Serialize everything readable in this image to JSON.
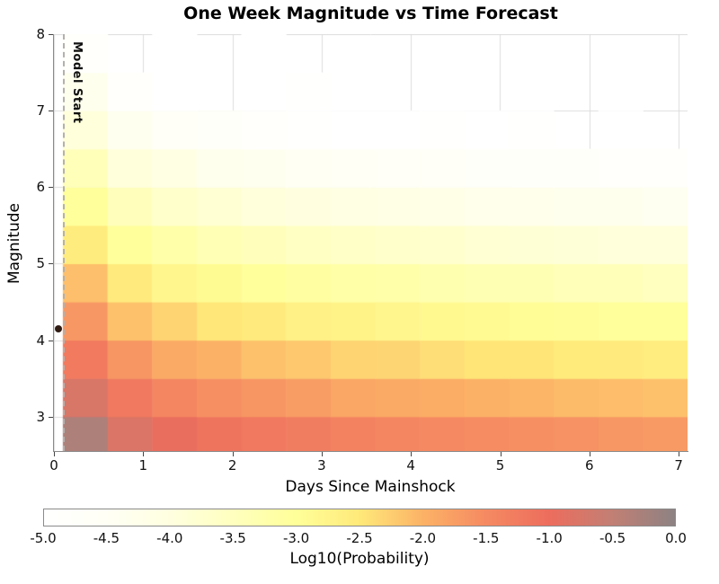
{
  "chart_data": {
    "type": "heatmap",
    "title": "One Week Magnitude vs Time Forecast",
    "xlabel": "Days Since Mainshock",
    "ylabel": "Magnitude",
    "xlim": [
      0,
      7.1
    ],
    "ylim": [
      2.55,
      8
    ],
    "x_ticks": [
      0,
      1,
      2,
      3,
      4,
      5,
      6,
      7
    ],
    "x_tick_labels": [
      "0",
      "1",
      "2",
      "3",
      "4",
      "5",
      "6",
      "7"
    ],
    "y_ticks": [
      3,
      4,
      5,
      6,
      7,
      8
    ],
    "y_tick_labels": [
      "3",
      "4",
      "5",
      "6",
      "7",
      "8"
    ],
    "grid": true,
    "x_edges": [
      0.1,
      0.6,
      1.1,
      1.6,
      2.1,
      2.6,
      3.1,
      3.6,
      4.1,
      4.6,
      5.1,
      5.6,
      6.1,
      6.6,
      7.1
    ],
    "y_edges": [
      2.55,
      3.0,
      3.5,
      4.0,
      4.5,
      5.0,
      5.5,
      6.0,
      6.5,
      7.0,
      7.5,
      8.0
    ],
    "values_row_order": "bottom_to_top (low magnitude first)",
    "values_log10_probability": [
      [
        -0.3,
        -0.78,
        -0.97,
        -1.12,
        -1.2,
        -1.28,
        -1.36,
        -1.45,
        -1.5,
        -1.52,
        -1.58,
        -1.6,
        -1.66,
        -1.7
      ],
      [
        -0.76,
        -1.2,
        -1.44,
        -1.58,
        -1.65,
        -1.74,
        -1.85,
        -1.9,
        -1.92,
        -2.0,
        -2.02,
        -2.08,
        -2.1,
        -2.14
      ],
      [
        -1.22,
        -1.65,
        -1.9,
        -2.0,
        -2.14,
        -2.2,
        -2.3,
        -2.32,
        -2.4,
        -2.46,
        -2.46,
        -2.54,
        -2.55,
        -2.6
      ],
      [
        -1.66,
        -2.14,
        -2.3,
        -2.48,
        -2.55,
        -2.68,
        -2.72,
        -2.8,
        -2.86,
        -2.88,
        -2.95,
        -2.96,
        -3.02,
        -3.02
      ],
      [
        -2.12,
        -2.55,
        -2.8,
        -2.9,
        -3.04,
        -3.1,
        -3.2,
        -3.22,
        -3.3,
        -3.36,
        -3.36,
        -3.44,
        -3.44,
        -3.5
      ],
      [
        -2.56,
        -3.04,
        -3.22,
        -3.38,
        -3.45,
        -3.58,
        -3.62,
        -3.7,
        -3.72,
        -3.8,
        -3.84,
        -3.86,
        -3.92,
        -3.92
      ],
      [
        -3.02,
        -3.45,
        -3.7,
        -3.8,
        -3.94,
        -4.0,
        -4.1,
        -4.12,
        -4.2,
        -4.26,
        -4.26,
        -4.34,
        -4.34,
        -4.4
      ],
      [
        -3.44,
        -3.94,
        -4.1,
        -4.3,
        -4.35,
        -4.48,
        -4.52,
        -4.6,
        -4.62,
        -4.7,
        -4.74,
        -4.75,
        -4.82,
        -4.81
      ],
      [
        -3.92,
        -4.35,
        -4.6,
        -4.7,
        -4.84,
        -4.9,
        -5.0,
        -5.02,
        -4.92,
        -5.15,
        -4.96,
        -5.22,
        -5.05,
        -5.28
      ],
      [
        -4.33,
        -4.84,
        -5.01,
        -5.18,
        -5.25,
        -4.95,
        -5.43,
        -5.5,
        -5.1,
        -5.6,
        -5.63,
        -5.2,
        -5.7,
        -5.73
      ],
      [
        -4.82,
        -5.25,
        -4.98,
        -5.62,
        -5.1,
        -5.81,
        -5.88,
        -5.3,
        -5.99,
        -6.04,
        -5.4,
        -6.12,
        -6.15,
        -6.18
      ]
    ],
    "model_start_line": {
      "x": 0.1,
      "label": "Model Start"
    },
    "mainshock_marker": {
      "x": 0.05,
      "y": 4.15,
      "color": "#2f1b12"
    },
    "colorbar": {
      "label": "Log10(Probability)",
      "range": [
        -5,
        0
      ],
      "tick_values": [
        -5.0,
        -4.5,
        -4.0,
        -3.5,
        -3.0,
        -2.5,
        -2.0,
        -1.5,
        -1.0,
        -0.5,
        0.0
      ],
      "tick_labels": [
        "-5.0",
        "-4.5",
        "-4.0",
        "-3.5",
        "-3.0",
        "-2.5",
        "-2.0",
        "-1.5",
        "-1.0",
        "-0.5",
        "0.0"
      ],
      "stops": [
        [
          -5.0,
          "#ffffff"
        ],
        [
          -4.5,
          "#fffff5"
        ],
        [
          -4.0,
          "#ffffe0"
        ],
        [
          -3.5,
          "#ffffbf"
        ],
        [
          -3.0,
          "#ffff99"
        ],
        [
          -2.5,
          "#ffe97a"
        ],
        [
          -2.0,
          "#fcb266"
        ],
        [
          -1.5,
          "#f58a62"
        ],
        [
          -1.0,
          "#ed6d5d"
        ],
        [
          -0.5,
          "#c27f74"
        ],
        [
          0.0,
          "#8d8283"
        ]
      ]
    }
  }
}
